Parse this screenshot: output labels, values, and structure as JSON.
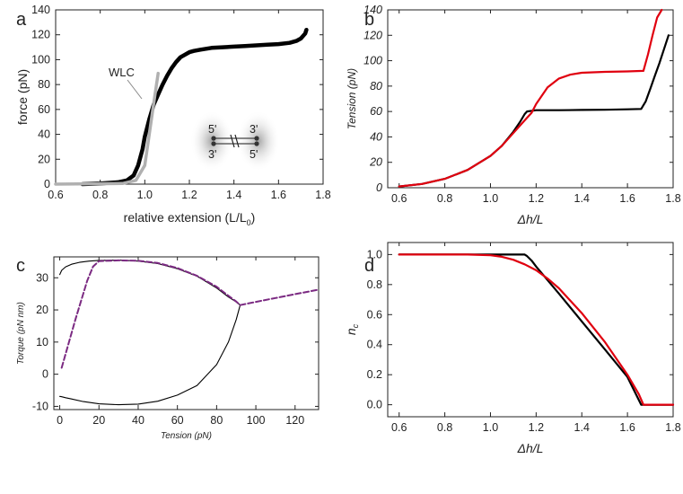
{
  "chart_data": [
    {
      "panel": "a",
      "type": "line",
      "xlabel": "relative extension (L/L",
      "xlabel_sub": "0",
      "xlabel_close": ")",
      "ylabel": "force (pN)",
      "xlim": [
        0.6,
        1.8
      ],
      "ylim": [
        0,
        140
      ],
      "xticks": [
        0.6,
        0.8,
        1.0,
        1.2,
        1.4,
        1.6,
        1.8
      ],
      "yticks": [
        0,
        20,
        40,
        60,
        80,
        100,
        120,
        140
      ],
      "annotation": "WLC",
      "inset_labels": [
        "5'",
        "3'",
        "3'",
        "5'"
      ],
      "series": [
        {
          "role": "data",
          "color": "#000000",
          "x": [
            0.72,
            0.8,
            0.88,
            0.92,
            0.95,
            0.97,
            0.99,
            1.0,
            1.02,
            1.04,
            1.06,
            1.08,
            1.1,
            1.12,
            1.14,
            1.16,
            1.18,
            1.2,
            1.22,
            1.25,
            1.3,
            1.35,
            1.4,
            1.45,
            1.5,
            1.55,
            1.6,
            1.65,
            1.68,
            1.7,
            1.72,
            1.725
          ],
          "y": [
            0,
            0.5,
            1.5,
            3,
            7,
            15,
            28,
            38,
            52,
            64,
            72,
            80,
            87,
            93,
            98,
            102,
            104,
            106,
            107,
            108,
            109.5,
            110,
            110.5,
            111,
            111.5,
            112,
            112.5,
            113.5,
            115,
            117,
            121,
            124
          ]
        },
        {
          "role": "wlc",
          "color": "#b0b0b0",
          "x": [
            0.6,
            0.9,
            0.96,
            1.0,
            1.02,
            1.04,
            1.06
          ],
          "y": [
            0,
            0.5,
            3,
            15,
            40,
            65,
            89
          ]
        }
      ]
    },
    {
      "panel": "b",
      "type": "line",
      "xlabel": "Δh/L",
      "ylabel": "Tension (pN)",
      "xlim": [
        0.55,
        1.8
      ],
      "ylim": [
        0,
        140
      ],
      "xticks": [
        0.6,
        0.8,
        1.0,
        1.2,
        1.4,
        1.6,
        1.8
      ],
      "yticks": [
        0,
        20,
        40,
        60,
        80,
        100,
        120,
        140
      ],
      "series": [
        {
          "color": "#000000",
          "x": [
            0.6,
            0.7,
            0.8,
            0.9,
            1.0,
            1.05,
            1.1,
            1.13,
            1.15,
            1.16,
            1.2,
            1.3,
            1.4,
            1.5,
            1.6,
            1.66,
            1.68,
            1.7,
            1.72,
            1.74,
            1.76,
            1.78
          ],
          "y": [
            1,
            3,
            7,
            14,
            25,
            33,
            44,
            52,
            58,
            60,
            61,
            61,
            61.2,
            61.4,
            61.7,
            62,
            68,
            78,
            88,
            98,
            109,
            120
          ]
        },
        {
          "color": "#e0000f",
          "x": [
            0.6,
            0.7,
            0.8,
            0.9,
            1.0,
            1.05,
            1.1,
            1.15,
            1.18,
            1.2,
            1.25,
            1.3,
            1.35,
            1.4,
            1.5,
            1.6,
            1.67,
            1.69,
            1.71,
            1.73,
            1.75
          ],
          "y": [
            1,
            3,
            7,
            14,
            25,
            33,
            43,
            53,
            59,
            66,
            79,
            86,
            89,
            90.5,
            91.2,
            91.6,
            92,
            105,
            120,
            134,
            140
          ]
        }
      ]
    },
    {
      "panel": "c",
      "type": "line",
      "xlabel": "Tension (pN)",
      "ylabel": "Torque (pN nm)",
      "xlim": [
        -3,
        132
      ],
      "ylim": [
        -11,
        36.5
      ],
      "xticks": [
        0,
        20,
        40,
        60,
        80,
        100,
        120
      ],
      "yticks": [
        -10,
        0,
        10,
        20,
        30
      ],
      "series": [
        {
          "style": "solid",
          "color": "#000000",
          "x": [
            0,
            1,
            3,
            6,
            10,
            15,
            20,
            30,
            40,
            50,
            60,
            70,
            80,
            86,
            90,
            92,
            90,
            86,
            80,
            70,
            60,
            50,
            40,
            30,
            20,
            12,
            6,
            3,
            1,
            0
          ],
          "y": [
            31,
            32.3,
            33.4,
            34.2,
            34.8,
            35.2,
            35.4,
            35.5,
            35.2,
            34.4,
            32.8,
            30.5,
            26.8,
            24,
            22.5,
            21.5,
            17,
            10,
            3,
            -3.5,
            -6.5,
            -8.4,
            -9.3,
            -9.5,
            -9.2,
            -8.5,
            -7.7,
            -7.3,
            -7,
            -6.9
          ]
        },
        {
          "style": "dashed",
          "color": "#7b2a82",
          "x": [
            1,
            8,
            14,
            17,
            20,
            30,
            40,
            50,
            60,
            70,
            80,
            86,
            90,
            92,
            100,
            110,
            120,
            132
          ],
          "y": [
            2,
            17,
            29,
            33.5,
            35.2,
            35.4,
            35.3,
            34.6,
            33,
            30.6,
            27.2,
            24.4,
            22.6,
            21.5,
            22.5,
            23.7,
            24.9,
            26.3
          ]
        }
      ]
    },
    {
      "panel": "d",
      "type": "line",
      "xlabel": "Δh/L",
      "ylabel": "n",
      "ylabel_sub": "c",
      "xlim": [
        0.55,
        1.8
      ],
      "ylim": [
        -0.08,
        1.08
      ],
      "xticks": [
        0.6,
        0.8,
        1.0,
        1.2,
        1.4,
        1.6,
        1.8
      ],
      "yticks": [
        "0.0",
        "0.2",
        "0.4",
        "0.6",
        "0.8",
        "1.0"
      ],
      "series": [
        {
          "color": "#000000",
          "x": [
            0.6,
            1.15,
            1.16,
            1.18,
            1.2,
            1.3,
            1.4,
            1.5,
            1.6,
            1.66,
            1.8
          ],
          "y": [
            1,
            1,
            0.99,
            0.96,
            0.92,
            0.74,
            0.555,
            0.37,
            0.185,
            0,
            0
          ]
        },
        {
          "color": "#e0000f",
          "x": [
            0.6,
            0.9,
            1.0,
            1.05,
            1.1,
            1.15,
            1.2,
            1.25,
            1.3,
            1.4,
            1.5,
            1.6,
            1.65,
            1.67,
            1.8
          ],
          "y": [
            1,
            1,
            0.995,
            0.985,
            0.965,
            0.935,
            0.895,
            0.84,
            0.775,
            0.61,
            0.42,
            0.2,
            0.07,
            0,
            0
          ]
        }
      ]
    }
  ],
  "panel_letters": [
    "a",
    "b",
    "c",
    "d"
  ]
}
